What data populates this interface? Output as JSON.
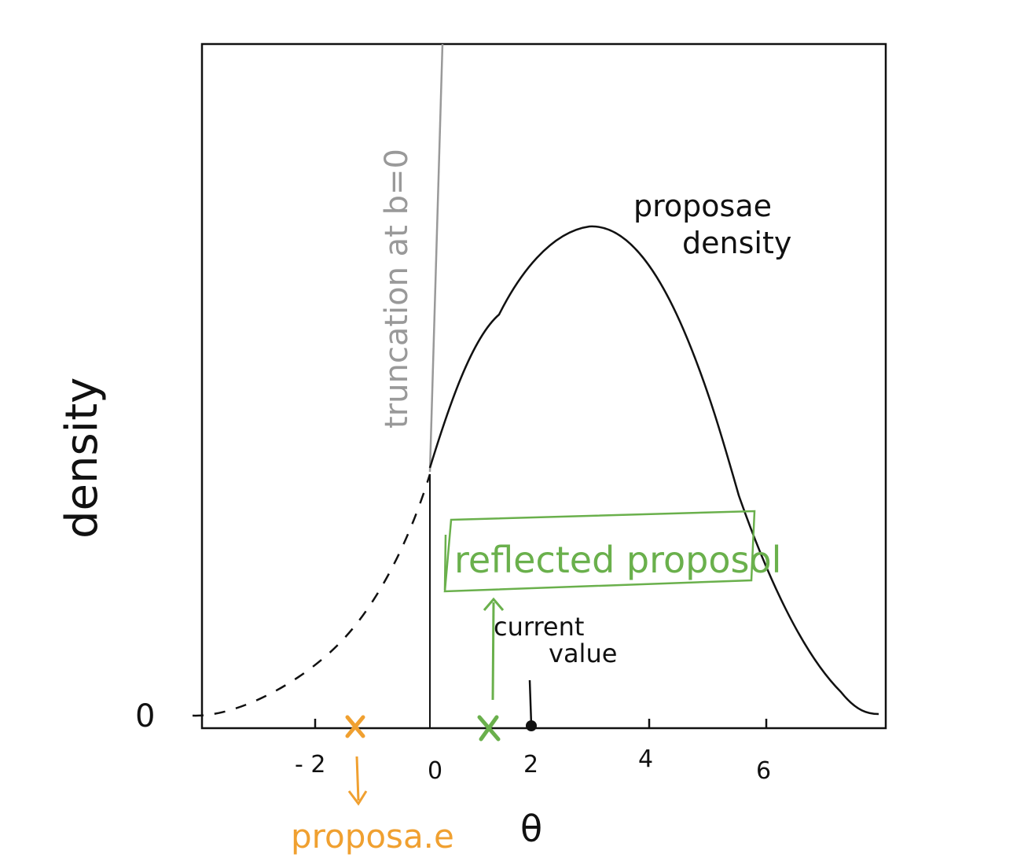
{
  "axes": {
    "x_label": "θ",
    "y_label": "density",
    "y_tick_zero": "0",
    "x_ticks": [
      {
        "value": -2,
        "label": "- 2"
      },
      {
        "value": 0,
        "label": "0"
      },
      {
        "value": 2,
        "label": "2"
      },
      {
        "value": 4,
        "label": "4"
      },
      {
        "value": 6,
        "label": "6"
      }
    ]
  },
  "annotations": {
    "truncation": "truncation at b=0",
    "proposal_density": [
      "proposae",
      "density"
    ],
    "reflected_proposal": "reflected proposol",
    "current_value": [
      "current",
      "value"
    ],
    "proposal": "proposa.e"
  },
  "points": {
    "truncation_b": 0,
    "current_value": 2,
    "proposal": -1.3,
    "reflected_proposal": 1.1
  },
  "colors": {
    "ink": "#111111",
    "truncation": "#999999",
    "reflected": "#6ab04c",
    "proposal": "#f0a030"
  }
}
